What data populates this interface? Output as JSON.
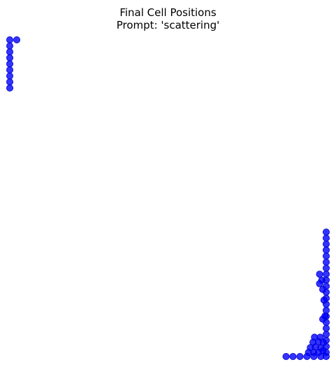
{
  "chart_data": {
    "type": "scatter",
    "title": "Final Cell Positions",
    "subtitle": "Prompt: 'scattering'",
    "xlabel": "",
    "ylabel": "",
    "axes_visible": false,
    "grid": false,
    "marker_color": "#0000ff",
    "xlim": [
      0,
      1
    ],
    "ylim": [
      0,
      1
    ],
    "series": [
      {
        "points": [
          {
            "x": 0.0,
            "y": 1.0
          },
          {
            "x": 0.022,
            "y": 1.0
          },
          {
            "x": 0.0,
            "y": 0.981
          },
          {
            "x": 0.0,
            "y": 0.962
          },
          {
            "x": 0.0,
            "y": 0.943
          },
          {
            "x": 0.0,
            "y": 0.924
          },
          {
            "x": 0.0,
            "y": 0.905
          },
          {
            "x": 0.0,
            "y": 0.886
          },
          {
            "x": 0.0,
            "y": 0.867
          },
          {
            "x": 0.0,
            "y": 0.848
          },
          {
            "x": 1.0,
            "y": 0.393
          },
          {
            "x": 1.0,
            "y": 0.374
          },
          {
            "x": 1.0,
            "y": 0.355
          },
          {
            "x": 1.0,
            "y": 0.336
          },
          {
            "x": 1.0,
            "y": 0.317
          },
          {
            "x": 1.0,
            "y": 0.298
          },
          {
            "x": 1.0,
            "y": 0.279
          },
          {
            "x": 1.0,
            "y": 0.26
          },
          {
            "x": 1.0,
            "y": 0.241
          },
          {
            "x": 1.0,
            "y": 0.222
          },
          {
            "x": 1.0,
            "y": 0.203
          },
          {
            "x": 1.0,
            "y": 0.184
          },
          {
            "x": 1.0,
            "y": 0.165
          },
          {
            "x": 1.0,
            "y": 0.146
          },
          {
            "x": 1.0,
            "y": 0.127
          },
          {
            "x": 1.0,
            "y": 0.108
          },
          {
            "x": 1.0,
            "y": 0.089
          },
          {
            "x": 1.0,
            "y": 0.07
          },
          {
            "x": 1.0,
            "y": 0.051
          },
          {
            "x": 1.0,
            "y": 0.032
          },
          {
            "x": 1.0,
            "y": 0.013
          },
          {
            "x": 0.979,
            "y": 0.26
          },
          {
            "x": 0.986,
            "y": 0.241
          },
          {
            "x": 0.979,
            "y": 0.23
          },
          {
            "x": 0.989,
            "y": 0.212
          },
          {
            "x": 0.993,
            "y": 0.178
          },
          {
            "x": 0.989,
            "y": 0.118
          },
          {
            "x": 0.996,
            "y": 0.128
          },
          {
            "x": 0.963,
            "y": 0.061
          },
          {
            "x": 0.981,
            "y": 0.061
          },
          {
            "x": 0.958,
            "y": 0.045
          },
          {
            "x": 0.976,
            "y": 0.047
          },
          {
            "x": 0.991,
            "y": 0.044
          },
          {
            "x": 0.95,
            "y": 0.028
          },
          {
            "x": 0.966,
            "y": 0.03
          },
          {
            "x": 0.983,
            "y": 0.027
          },
          {
            "x": 0.944,
            "y": 0.013
          },
          {
            "x": 0.961,
            "y": 0.013
          },
          {
            "x": 0.976,
            "y": 0.013
          },
          {
            "x": 0.99,
            "y": 0.018
          },
          {
            "x": 0.873,
            "y": 0.0
          },
          {
            "x": 0.895,
            "y": 0.0
          },
          {
            "x": 0.917,
            "y": 0.0
          },
          {
            "x": 0.939,
            "y": 0.0
          },
          {
            "x": 0.961,
            "y": 0.0
          },
          {
            "x": 0.983,
            "y": 0.0
          },
          {
            "x": 1.0,
            "y": 0.0
          }
        ]
      }
    ]
  }
}
